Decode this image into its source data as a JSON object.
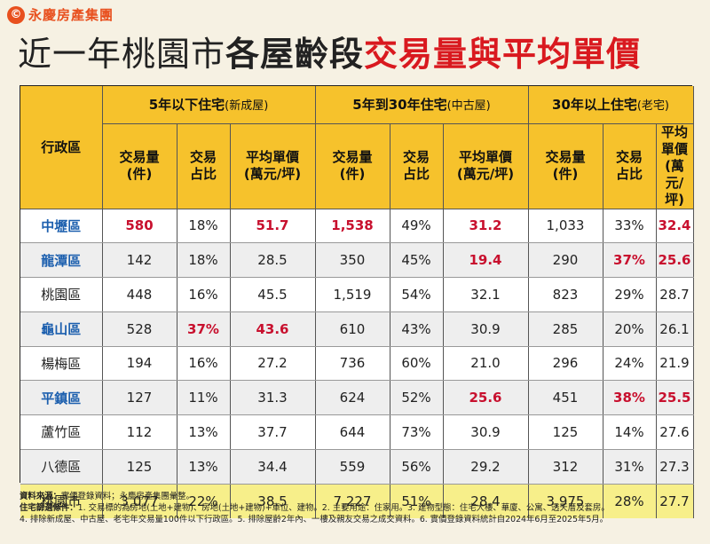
{
  "brand": {
    "icon": "©",
    "name": "永慶房產集團"
  },
  "title": {
    "part1": "近一年桃園市",
    "part2": "各屋齡段",
    "part3": "交易量與平均單價"
  },
  "table": {
    "district_header": "行政區",
    "groups": [
      {
        "label": "5年以下住宅",
        "sub": "(新成屋)"
      },
      {
        "label": "5年到30年住宅",
        "sub": "(中古屋)"
      },
      {
        "label": "30年以上住宅",
        "sub": "(老宅)"
      }
    ],
    "col_headers": [
      {
        "line1": "交易量",
        "line2": "(件)"
      },
      {
        "line1": "交易",
        "line2": "占比"
      },
      {
        "line1": "平均單價",
        "line2": "(萬元/坪)"
      }
    ],
    "rows": [
      {
        "district": "中壢區",
        "cells": [
          "580",
          "18%",
          "51.7",
          "1,538",
          "49%",
          "31.2",
          "1,033",
          "33%",
          "32.4"
        ]
      },
      {
        "district": "龍潭區",
        "cells": [
          "142",
          "18%",
          "28.5",
          "350",
          "45%",
          "19.4",
          "290",
          "37%",
          "25.6"
        ]
      },
      {
        "district": "桃園區",
        "cells": [
          "448",
          "16%",
          "45.5",
          "1,519",
          "54%",
          "32.1",
          "823",
          "29%",
          "28.7"
        ]
      },
      {
        "district": "龜山區",
        "cells": [
          "528",
          "37%",
          "43.6",
          "610",
          "43%",
          "30.9",
          "285",
          "20%",
          "26.1"
        ]
      },
      {
        "district": "楊梅區",
        "cells": [
          "194",
          "16%",
          "27.2",
          "736",
          "60%",
          "21.0",
          "296",
          "24%",
          "21.9"
        ]
      },
      {
        "district": "平鎮區",
        "cells": [
          "127",
          "11%",
          "31.3",
          "624",
          "52%",
          "25.6",
          "451",
          "38%",
          "25.5"
        ]
      },
      {
        "district": "蘆竹區",
        "cells": [
          "112",
          "13%",
          "37.7",
          "644",
          "73%",
          "30.9",
          "125",
          "14%",
          "27.6"
        ]
      },
      {
        "district": "八德區",
        "cells": [
          "125",
          "13%",
          "34.4",
          "559",
          "56%",
          "29.2",
          "312",
          "31%",
          "27.3"
        ]
      },
      {
        "district": "桃園市",
        "cells": [
          "3,077",
          "22%",
          "38.5",
          "7,227",
          "51%",
          "28.4",
          "3,975",
          "28%",
          "27.7"
        ]
      }
    ]
  },
  "footnote": {
    "source_label": "資料來源：",
    "source_text": "實價登錄資料；永慶房產集團彙整。",
    "criteria_label": "住宅篩選條件：",
    "criteria_text": "1. 交易標的為房地(土地+建物)、房地(土地+建物)+車位、建物。2. 主要用途：住家用。3. 建物型態：住宅大樓、華廈、公寓、透天厝及套房。",
    "criteria_text2": "4. 排除新成屋、中古屋、老宅年交易量100件以下行政區。5. 排除屋齡2年內、一樓及親友交易之成交資料。6. 實價登錄資料統計自2024年6月至2025年5月。"
  }
}
